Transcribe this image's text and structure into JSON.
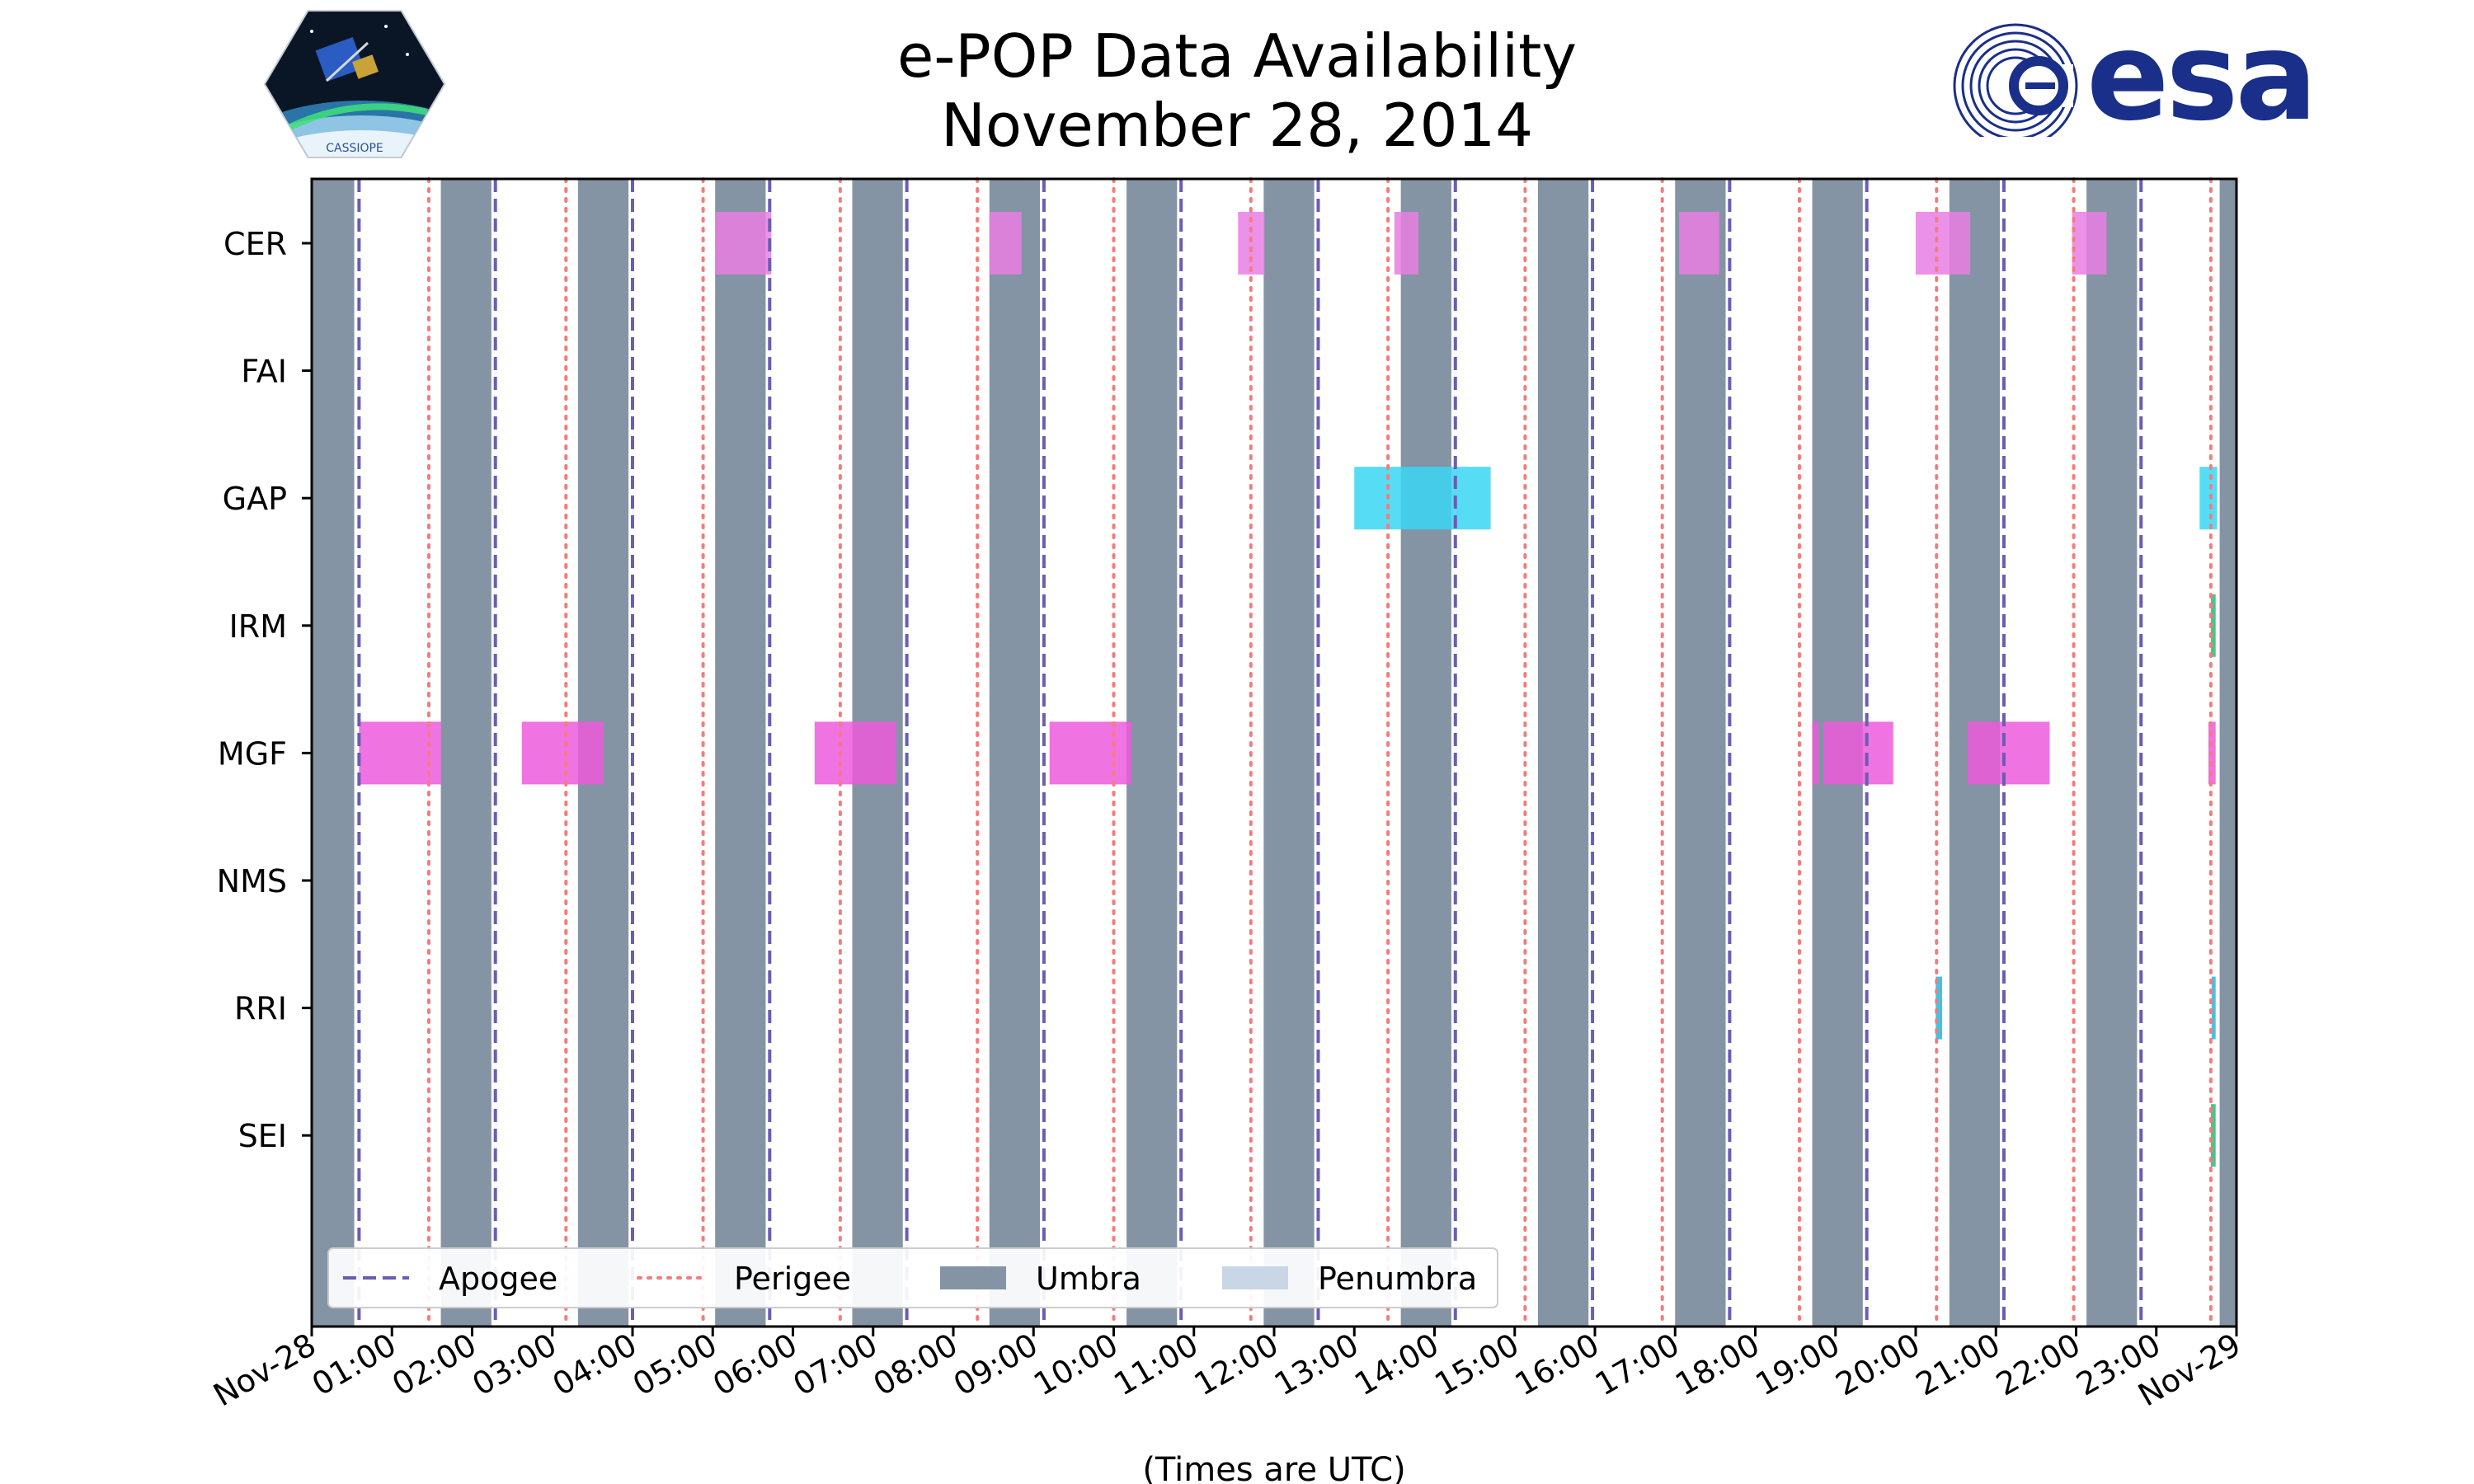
{
  "chart_data": {
    "type": "timeline",
    "title": [
      "e-POP Data Availability",
      "November 28, 2014"
    ],
    "xlabel": "(Times are UTC)",
    "x_range_hours": [
      0,
      24
    ],
    "tick_labels": [
      "Nov-28",
      "01:00",
      "02:00",
      "03:00",
      "04:00",
      "05:00",
      "06:00",
      "07:00",
      "08:00",
      "09:00",
      "10:00",
      "11:00",
      "12:00",
      "13:00",
      "14:00",
      "15:00",
      "16:00",
      "17:00",
      "18:00",
      "19:00",
      "20:00",
      "21:00",
      "22:00",
      "23:00",
      "Nov-29"
    ],
    "instruments": [
      "CER",
      "FAI",
      "GAP",
      "IRM",
      "MGF",
      "NMS",
      "RRI",
      "SEI"
    ],
    "apogee_hours": [
      0.59,
      2.29,
      4.0,
      5.71,
      7.42,
      9.13,
      10.84,
      12.55,
      14.26,
      15.97,
      17.68,
      19.39,
      21.1,
      22.81
    ],
    "perigee_hours": [
      1.46,
      3.17,
      4.88,
      6.59,
      8.3,
      10.0,
      11.71,
      13.42,
      15.13,
      16.84,
      18.55,
      20.26,
      21.97,
      23.68
    ],
    "umbra_hours": [
      [
        0.0,
        0.53
      ],
      [
        1.61,
        2.24
      ],
      [
        3.32,
        3.95
      ],
      [
        5.03,
        5.66
      ],
      [
        6.74,
        7.37
      ],
      [
        8.45,
        9.08
      ],
      [
        10.16,
        10.79
      ],
      [
        11.87,
        12.5
      ],
      [
        13.58,
        14.21
      ],
      [
        15.29,
        15.92
      ],
      [
        17.0,
        17.63
      ],
      [
        18.71,
        19.34
      ],
      [
        20.42,
        21.05
      ],
      [
        22.13,
        22.76
      ],
      [
        23.79,
        24.0
      ]
    ],
    "availability": [
      {
        "instrument": "CER",
        "color": "#e97ee4",
        "intervals": [
          [
            5.03,
            5.73
          ],
          [
            8.45,
            8.85
          ],
          [
            11.55,
            11.88
          ],
          [
            13.5,
            13.8
          ],
          [
            17.05,
            17.55
          ],
          [
            20.0,
            20.68
          ],
          [
            21.95,
            22.38
          ]
        ]
      },
      {
        "instrument": "FAI",
        "color": "#f2a3f0",
        "intervals": []
      },
      {
        "instrument": "GAP",
        "color": "#3ad6f5",
        "intervals": [
          [
            13.0,
            14.7
          ],
          [
            23.54,
            23.76
          ]
        ]
      },
      {
        "instrument": "IRM",
        "color": "#2db87a",
        "intervals": [
          [
            23.68,
            23.74
          ]
        ]
      },
      {
        "instrument": "MGF",
        "color": "#ec5bdc",
        "intervals": [
          [
            0.59,
            1.61
          ],
          [
            2.62,
            3.64
          ],
          [
            6.27,
            7.29
          ],
          [
            9.2,
            10.22
          ],
          [
            18.71,
            18.79
          ],
          [
            18.85,
            19.72
          ],
          [
            20.65,
            21.67
          ],
          [
            23.65,
            23.74
          ]
        ]
      },
      {
        "instrument": "NMS",
        "color": "#888888",
        "intervals": []
      },
      {
        "instrument": "RRI",
        "color": "#2ab5d8",
        "intervals": [
          [
            20.25,
            20.33
          ],
          [
            23.69,
            23.74
          ]
        ]
      },
      {
        "instrument": "SEI",
        "color": "#2db87a",
        "intervals": [
          [
            23.68,
            23.74
          ]
        ]
      }
    ],
    "legend": {
      "placement": "bottom-left",
      "entries": [
        {
          "label": "Apogee",
          "style": "dashed",
          "color": "#6a5db3"
        },
        {
          "label": "Perigee",
          "style": "dotted",
          "color": "#f47c7c"
        },
        {
          "label": "Umbra",
          "style": "patch",
          "color": "#8494a4"
        },
        {
          "label": "Penumbra",
          "style": "patch",
          "color": "#c9d6e6"
        }
      ]
    }
  },
  "colors": {
    "apogee": "#6a5db3",
    "perigee": "#f47c7c",
    "umbra": "#8494a4",
    "penumbra": "#c9d6e6",
    "esa_blue": "#1a2f8a"
  },
  "logos": {
    "esa_wordmark": "esa",
    "cassiope_badge_text": "CASSIOPE"
  }
}
